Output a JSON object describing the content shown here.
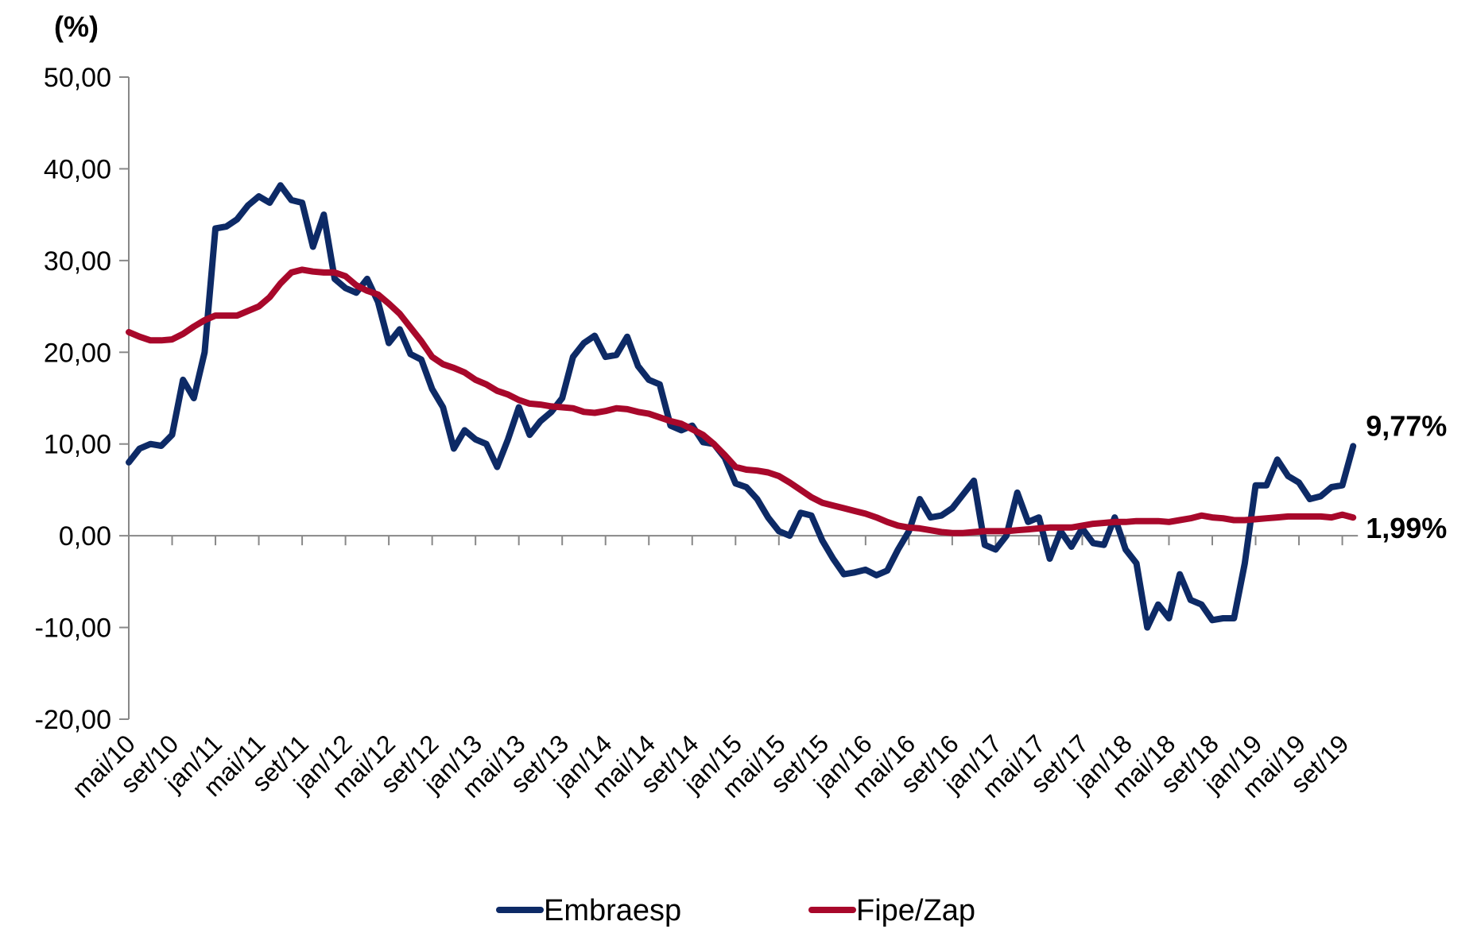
{
  "chart_data": {
    "type": "line",
    "y_label": "(%)",
    "categories": [
      "mai/10",
      null,
      null,
      null,
      "set/10",
      null,
      null,
      null,
      "jan/11",
      null,
      null,
      null,
      "mai/11",
      null,
      null,
      null,
      "set/11",
      null,
      null,
      null,
      "jan/12",
      null,
      null,
      null,
      "mai/12",
      null,
      null,
      null,
      "set/12",
      null,
      null,
      null,
      "jan/13",
      null,
      null,
      null,
      "mai/13",
      null,
      null,
      null,
      "set/13",
      null,
      null,
      null,
      "jan/14",
      null,
      null,
      null,
      "mai/14",
      null,
      null,
      null,
      "set/14",
      null,
      null,
      null,
      "jan/15",
      null,
      null,
      null,
      "mai/15",
      null,
      null,
      null,
      "set/15",
      null,
      null,
      null,
      "jan/16",
      null,
      null,
      null,
      "mai/16",
      null,
      null,
      null,
      "set/16",
      null,
      null,
      null,
      "jan/17",
      null,
      null,
      null,
      "mai/17",
      null,
      null,
      null,
      "set/17",
      null,
      null,
      null,
      "jan/18",
      null,
      null,
      null,
      "mai/18",
      null,
      null,
      null,
      "set/18",
      null,
      null,
      null,
      "jan/19",
      null,
      null,
      null,
      "mai/19",
      null,
      null,
      null,
      "set/19",
      null
    ],
    "series": [
      {
        "name": "Embraesp",
        "color": "#0d2a66",
        "label_color": "#2e568f",
        "values": [
          8,
          9.5,
          10,
          9.8,
          11,
          17,
          15,
          20,
          33.5,
          33.7,
          34.5,
          36,
          37,
          36.3,
          38.2,
          36.6,
          36.3,
          31.5,
          35,
          28,
          27,
          26.5,
          28,
          25.5,
          21,
          22.5,
          19.8,
          19.2,
          16,
          14,
          9.5,
          11.5,
          10.5,
          10,
          7.5,
          10.5,
          14,
          11,
          12.5,
          13.5,
          15,
          19.5,
          21,
          21.8,
          19.5,
          19.7,
          21.7,
          18.5,
          17,
          16.5,
          12,
          11.5,
          12,
          10.2,
          10,
          8.5,
          5.7,
          5.3,
          4,
          2,
          0.5,
          0,
          2.5,
          2.2,
          -0.5,
          -2.5,
          -4.2,
          -4,
          -3.7,
          -4.3,
          -3.8,
          -1.5,
          0.5,
          4,
          2,
          2.2,
          3,
          4.5,
          6,
          -1,
          -1.5,
          0,
          4.7,
          1.5,
          2,
          -2.5,
          0.5,
          -1.2,
          0.8,
          -0.8,
          -1,
          2,
          -1.5,
          -3,
          -10,
          -7.5,
          -9,
          -4.2,
          -7,
          -7.5,
          -9.2,
          -9,
          -9,
          -3,
          5.5,
          5.5,
          8.3,
          6.5,
          5.8,
          4,
          4.3,
          5.3,
          5.5,
          9.77
        ],
        "value_labels": [
          null,
          null,
          null,
          null,
          null,
          null,
          null,
          null,
          null,
          null,
          null,
          null,
          null,
          null,
          null,
          null,
          null,
          null,
          null,
          null,
          null,
          null,
          null,
          null,
          null,
          null,
          null,
          null,
          null,
          null,
          null,
          null,
          null,
          null,
          null,
          null,
          null,
          null,
          null,
          null,
          null,
          null,
          null,
          null,
          null,
          null,
          null,
          null,
          null,
          null,
          null,
          null,
          null,
          null,
          null,
          null,
          null,
          null,
          null,
          null,
          null,
          null,
          null,
          null,
          null,
          null,
          null,
          null,
          null,
          null,
          null,
          null,
          null,
          null,
          null,
          null,
          null,
          null,
          null,
          null,
          null,
          null,
          null,
          null,
          null,
          null,
          null,
          null,
          null,
          null,
          null,
          null,
          null,
          null,
          null,
          null,
          null,
          null,
          null,
          null,
          null,
          null,
          null,
          null,
          null,
          null,
          null,
          null,
          null,
          null,
          null,
          null,
          null,
          "9,77%"
        ]
      },
      {
        "name": "Fipe/Zap",
        "color": "#a8082b",
        "label_color": "#a8082b",
        "values": [
          22.2,
          21.7,
          21.3,
          21.3,
          21.4,
          22,
          22.8,
          23.5,
          24,
          24,
          24,
          24.5,
          25,
          26,
          27.5,
          28.7,
          29,
          28.8,
          28.7,
          28.7,
          28.3,
          27.3,
          26.7,
          26.3,
          25.3,
          24.2,
          22.7,
          21.2,
          19.5,
          18.7,
          18.3,
          17.8,
          17,
          16.5,
          15.8,
          15.4,
          14.8,
          14.4,
          14.3,
          14.1,
          14,
          13.9,
          13.5,
          13.4,
          13.6,
          13.9,
          13.8,
          13.5,
          13.3,
          12.9,
          12.5,
          12.2,
          11.6,
          11,
          10,
          8.8,
          7.5,
          7.2,
          7.1,
          6.9,
          6.5,
          5.8,
          5,
          4.2,
          3.6,
          3.3,
          3,
          2.7,
          2.4,
          2,
          1.5,
          1.1,
          0.9,
          0.8,
          0.6,
          0.4,
          0.3,
          0.3,
          0.4,
          0.5,
          0.5,
          0.5,
          0.6,
          0.7,
          0.8,
          0.9,
          0.9,
          0.9,
          1.1,
          1.3,
          1.4,
          1.5,
          1.5,
          1.6,
          1.6,
          1.6,
          1.5,
          1.7,
          1.9,
          2.2,
          2,
          1.9,
          1.7,
          1.7,
          1.8,
          1.9,
          2,
          2.1,
          2.1,
          2.1,
          2.1,
          2,
          2.3,
          1.99
        ],
        "value_labels": [
          null,
          null,
          null,
          null,
          null,
          null,
          null,
          null,
          null,
          null,
          null,
          null,
          null,
          null,
          null,
          null,
          null,
          null,
          null,
          null,
          null,
          null,
          null,
          null,
          null,
          null,
          null,
          null,
          null,
          null,
          null,
          null,
          null,
          null,
          null,
          null,
          null,
          null,
          null,
          null,
          null,
          null,
          null,
          null,
          null,
          null,
          null,
          null,
          null,
          null,
          null,
          null,
          null,
          null,
          null,
          null,
          null,
          null,
          null,
          null,
          null,
          null,
          null,
          null,
          null,
          null,
          null,
          null,
          null,
          null,
          null,
          null,
          null,
          null,
          null,
          null,
          null,
          null,
          null,
          null,
          null,
          null,
          null,
          null,
          null,
          null,
          null,
          null,
          null,
          null,
          null,
          null,
          null,
          null,
          null,
          null,
          null,
          null,
          null,
          null,
          null,
          null,
          null,
          null,
          null,
          null,
          null,
          null,
          null,
          null,
          null,
          null,
          null,
          "1,99%"
        ]
      }
    ],
    "ylim": [
      -20,
      50
    ],
    "yticks": [
      {
        "value": -20,
        "label": "-20,00"
      },
      {
        "value": -10,
        "label": "-10,00"
      },
      {
        "value": 0,
        "label": "0,00"
      },
      {
        "value": 10,
        "label": "10,00"
      },
      {
        "value": 20,
        "label": "20,00"
      },
      {
        "value": 30,
        "label": "30,00"
      },
      {
        "value": 40,
        "label": "40,00"
      },
      {
        "value": 50,
        "label": "50,00"
      }
    ],
    "legend": "bottom",
    "grid": false
  }
}
